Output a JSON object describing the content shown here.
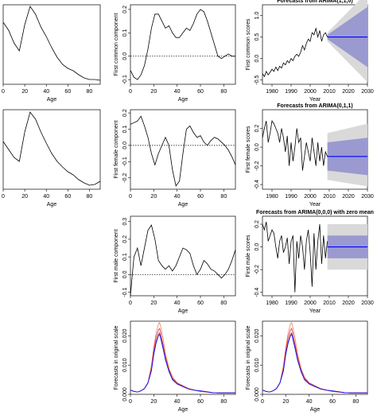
{
  "figure": {
    "background": "#ffffff",
    "colors": {
      "curve": "#000000",
      "fan_outer": "#d9d9d9",
      "fan_inner": "#9a9ad0",
      "forecast_line": "#0000ff",
      "zero_line": "#000000",
      "orig_series_1": "#f08060",
      "orig_series_2": "#e03020",
      "orig_series_3": "#7030a0",
      "orig_series_4": "#1010ff"
    }
  },
  "chart_data": [
    {
      "id": "p11",
      "type": "line",
      "title": "",
      "xlabel": "Age",
      "ylabel": "",
      "xlim": [
        0,
        90
      ],
      "xticks": [
        "0",
        "20",
        "40",
        "60",
        "80"
      ],
      "yticks": [],
      "x": [
        0,
        5,
        10,
        15,
        20,
        25,
        30,
        35,
        40,
        45,
        50,
        55,
        60,
        65,
        70,
        75,
        80,
        85,
        90
      ],
      "values": [
        0.78,
        0.68,
        0.52,
        0.42,
        0.75,
        0.98,
        0.88,
        0.72,
        0.6,
        0.46,
        0.34,
        0.25,
        0.2,
        0.17,
        0.12,
        0.08,
        0.06,
        0.06,
        0.05
      ],
      "ylim": [
        0,
        1
      ]
    },
    {
      "id": "p12",
      "type": "line",
      "title": "",
      "xlabel": "Age",
      "ylabel": "First common component",
      "xlim": [
        0,
        90
      ],
      "xticks": [
        "0",
        "20",
        "40",
        "60",
        "80"
      ],
      "ylim": [
        -0.12,
        0.22
      ],
      "yticks": [
        "-0.1",
        "0.0",
        "0.1",
        "0.2"
      ],
      "zero_line": true,
      "x": [
        0,
        3,
        6,
        9,
        12,
        15,
        18,
        21,
        24,
        27,
        30,
        33,
        36,
        39,
        42,
        45,
        48,
        51,
        54,
        57,
        60,
        63,
        66,
        69,
        72,
        75,
        78,
        81,
        84,
        87,
        90
      ],
      "values": [
        -0.06,
        -0.09,
        -0.1,
        -0.08,
        -0.04,
        0.03,
        0.12,
        0.18,
        0.18,
        0.15,
        0.12,
        0.13,
        0.1,
        0.08,
        0.08,
        0.1,
        0.12,
        0.11,
        0.14,
        0.18,
        0.2,
        0.19,
        0.15,
        0.1,
        0.05,
        0.0,
        -0.01,
        0.0,
        0.01,
        0.0,
        0.0
      ]
    },
    {
      "id": "p13",
      "type": "line",
      "title": "Forecasts from ARIMA(1,1,0)",
      "xlabel": "Year",
      "ylabel": "First common scores",
      "xlim": [
        1975,
        2030
      ],
      "xticks": [
        "1980",
        "1990",
        "2000",
        "2010",
        "2020",
        "2030"
      ],
      "ylim": [
        -0.6,
        1.25
      ],
      "yticks": [
        "-0.5",
        "0.0",
        "0.5",
        "1.0"
      ],
      "x": [
        1975,
        1976,
        1977,
        1978,
        1979,
        1980,
        1981,
        1982,
        1983,
        1984,
        1985,
        1986,
        1987,
        1988,
        1989,
        1990,
        1991,
        1992,
        1993,
        1994,
        1995,
        1996,
        1997,
        1998,
        1999,
        2000,
        2001,
        2002,
        2003,
        2004,
        2005,
        2006,
        2007,
        2008,
        2009
      ],
      "values": [
        -0.35,
        -0.42,
        -0.3,
        -0.38,
        -0.32,
        -0.25,
        -0.3,
        -0.2,
        -0.28,
        -0.18,
        -0.22,
        -0.1,
        -0.15,
        -0.05,
        -0.1,
        0.0,
        -0.05,
        0.05,
        0.1,
        0.05,
        0.15,
        0.3,
        0.2,
        0.35,
        0.45,
        0.4,
        0.6,
        0.55,
        0.7,
        0.5,
        0.65,
        0.4,
        0.55,
        0.6,
        0.5
      ],
      "forecast": {
        "x_start": 2009,
        "x_end": 2030,
        "mean": 0.5,
        "inner": [
          [
            0.45,
            0.55
          ],
          [
            -0.2,
            1.2
          ]
        ],
        "outer": [
          [
            0.4,
            0.6
          ],
          [
            -0.55,
            1.55
          ]
        ]
      }
    },
    {
      "id": "p21",
      "type": "line",
      "title": "",
      "xlabel": "Age",
      "ylabel": "",
      "xlim": [
        0,
        90
      ],
      "xticks": [
        "0",
        "20",
        "40",
        "60",
        "80"
      ],
      "yticks": [],
      "x": [
        0,
        5,
        10,
        15,
        20,
        25,
        30,
        35,
        40,
        45,
        50,
        55,
        60,
        65,
        70,
        75,
        80,
        85,
        90
      ],
      "values": [
        0.6,
        0.5,
        0.4,
        0.35,
        0.72,
        0.97,
        0.88,
        0.72,
        0.58,
        0.45,
        0.35,
        0.28,
        0.22,
        0.18,
        0.12,
        0.08,
        0.05,
        0.06,
        0.1
      ],
      "ylim": [
        0,
        1
      ]
    },
    {
      "id": "p22",
      "type": "line",
      "title": "",
      "xlabel": "Age",
      "ylabel": "First female component",
      "xlim": [
        0,
        90
      ],
      "xticks": [
        "0",
        "20",
        "40",
        "60",
        "80"
      ],
      "ylim": [
        -0.27,
        0.22
      ],
      "yticks": [
        "-0.2",
        "-0.1",
        "0.0",
        "0.1",
        "0.2"
      ],
      "zero_line": true,
      "x": [
        0,
        3,
        6,
        9,
        12,
        15,
        18,
        21,
        24,
        27,
        30,
        33,
        36,
        39,
        42,
        45,
        48,
        51,
        54,
        57,
        60,
        63,
        66,
        69,
        72,
        75,
        78,
        81,
        84,
        87,
        90
      ],
      "values": [
        0.13,
        0.14,
        0.15,
        0.18,
        0.12,
        0.05,
        -0.05,
        -0.12,
        -0.05,
        0.0,
        0.05,
        0.0,
        -0.15,
        -0.25,
        -0.22,
        -0.05,
        0.1,
        0.12,
        0.08,
        0.05,
        0.06,
        0.02,
        0.0,
        0.03,
        0.05,
        0.04,
        0.02,
        0.0,
        -0.03,
        -0.07,
        -0.12
      ]
    },
    {
      "id": "p23",
      "type": "line",
      "title": "Forecasts from ARIMA(0,1,1)",
      "xlabel": "Year",
      "ylabel": "First female scores",
      "xlim": [
        1975,
        2030
      ],
      "xticks": [
        "1980",
        "1990",
        "2000",
        "2010",
        "2020",
        "2030"
      ],
      "ylim": [
        -0.45,
        0.4
      ],
      "yticks": [
        "-0.4",
        "-0.2",
        "0.0",
        "0.2"
      ],
      "x": [
        1975,
        1976,
        1977,
        1978,
        1979,
        1980,
        1981,
        1982,
        1983,
        1984,
        1985,
        1986,
        1987,
        1988,
        1989,
        1990,
        1991,
        1992,
        1993,
        1994,
        1995,
        1996,
        1997,
        1998,
        1999,
        2000,
        2001,
        2002,
        2003,
        2004,
        2005,
        2006,
        2007,
        2008,
        2009
      ],
      "values": [
        0.1,
        0.2,
        0.28,
        0.05,
        0.15,
        0.28,
        0.25,
        0.2,
        0.15,
        0.05,
        0.2,
        0.1,
        -0.05,
        0.12,
        -0.2,
        0.05,
        -0.15,
        0.0,
        0.2,
        0.05,
        0.1,
        -0.25,
        -0.1,
        0.05,
        -0.05,
        -0.15,
        0.1,
        -0.05,
        -0.2,
        0.05,
        -0.15,
        0.0,
        -0.2,
        -0.05,
        -0.1
      ],
      "forecast": {
        "x_start": 2009,
        "x_end": 2030,
        "mean": -0.1,
        "inner": [
          [
            -0.25,
            0.05
          ],
          [
            -0.3,
            0.1
          ]
        ],
        "outer": [
          [
            -0.35,
            0.15
          ],
          [
            -0.42,
            0.25
          ]
        ]
      }
    },
    {
      "id": "p32",
      "type": "line",
      "title": "",
      "xlabel": "Age",
      "ylabel": "First male component",
      "xlim": [
        0,
        90
      ],
      "xticks": [
        "0",
        "20",
        "40",
        "60",
        "80"
      ],
      "ylim": [
        -0.12,
        0.33
      ],
      "yticks": [
        "-0.1",
        "0.0",
        "0.1",
        "0.2",
        "0.3"
      ],
      "zero_line": true,
      "x": [
        0,
        3,
        6,
        9,
        12,
        15,
        18,
        21,
        24,
        27,
        30,
        33,
        36,
        39,
        42,
        45,
        48,
        51,
        54,
        57,
        60,
        63,
        66,
        69,
        72,
        75,
        78,
        81,
        84,
        87,
        90
      ],
      "values": [
        -0.12,
        0.1,
        0.15,
        0.05,
        0.15,
        0.25,
        0.28,
        0.2,
        0.08,
        0.05,
        0.03,
        0.05,
        0.02,
        0.05,
        0.1,
        0.15,
        0.14,
        0.12,
        0.05,
        0.0,
        0.03,
        0.08,
        0.06,
        0.03,
        0.02,
        0.0,
        -0.02,
        0.0,
        0.03,
        0.08,
        0.14
      ]
    },
    {
      "id": "p33",
      "type": "line",
      "title": "Forecasts from ARIMA(0,0,0) with zero mean",
      "xlabel": "Year",
      "ylabel": "First male scores",
      "xlim": [
        1975,
        2030
      ],
      "xticks": [
        "1980",
        "1990",
        "2000",
        "2010",
        "2020",
        "2030"
      ],
      "ylim": [
        -0.43,
        0.27
      ],
      "yticks": [
        "-0.4",
        "-0.2",
        "0.0",
        "0.2"
      ],
      "x": [
        1975,
        1976,
        1977,
        1978,
        1979,
        1980,
        1981,
        1982,
        1983,
        1984,
        1985,
        1986,
        1987,
        1988,
        1989,
        1990,
        1991,
        1992,
        1993,
        1994,
        1995,
        1996,
        1997,
        1998,
        1999,
        2000,
        2001,
        2002,
        2003,
        2004,
        2005,
        2006,
        2007,
        2008,
        2009
      ],
      "values": [
        0.2,
        0.15,
        0.22,
        0.05,
        0.1,
        0.15,
        0.12,
        0.0,
        -0.1,
        0.05,
        0.1,
        -0.05,
        0.0,
        0.08,
        -0.15,
        0.05,
        0.1,
        -0.4,
        0.05,
        -0.1,
        0.1,
        0.0,
        -0.2,
        0.05,
        0.15,
        -0.05,
        -0.35,
        0.12,
        -0.2,
        0.05,
        0.2,
        -0.15,
        0.1,
        -0.1,
        0.05
      ],
      "forecast": {
        "x_start": 2009,
        "x_end": 2030,
        "mean": 0.0,
        "inner": [
          [
            -0.1,
            0.1
          ],
          [
            -0.1,
            0.1
          ]
        ],
        "outer": [
          [
            -0.2,
            0.2
          ],
          [
            -0.2,
            0.2
          ]
        ]
      }
    },
    {
      "id": "p42",
      "type": "line",
      "title": "",
      "xlabel": "Age",
      "ylabel": "Forecasts in original scale",
      "xlim": [
        0,
        90
      ],
      "xticks": [
        "0",
        "20",
        "40",
        "60",
        "80"
      ],
      "ylim": [
        0,
        0.025
      ],
      "yticks": [
        "0.000",
        "0.010",
        "0.020"
      ],
      "x": [
        0,
        3,
        6,
        9,
        12,
        15,
        18,
        20,
        22,
        24,
        25,
        26,
        28,
        30,
        33,
        36,
        40,
        45,
        50,
        55,
        60,
        65,
        70,
        75,
        80,
        85,
        90
      ],
      "series": [
        {
          "color": "#f08060",
          "values": [
            0.0015,
            0.001,
            0.0008,
            0.0012,
            0.002,
            0.004,
            0.01,
            0.016,
            0.021,
            0.024,
            0.0245,
            0.023,
            0.019,
            0.014,
            0.009,
            0.006,
            0.004,
            0.003,
            0.002,
            0.0015,
            0.001,
            0.0008,
            0.0006,
            0.0005,
            0.0005,
            0.0005,
            0.0005
          ]
        },
        {
          "color": "#e03020",
          "values": [
            0.0015,
            0.001,
            0.0008,
            0.0012,
            0.002,
            0.004,
            0.009,
            0.015,
            0.0195,
            0.022,
            0.0225,
            0.021,
            0.017,
            0.013,
            0.0085,
            0.0055,
            0.0038,
            0.0028,
            0.0019,
            0.0014,
            0.001,
            0.0008,
            0.0006,
            0.0005,
            0.0005,
            0.0005,
            0.0005
          ]
        },
        {
          "color": "#7030a0",
          "values": [
            0.0014,
            0.001,
            0.0008,
            0.0012,
            0.002,
            0.004,
            0.0085,
            0.014,
            0.018,
            0.0205,
            0.021,
            0.0195,
            0.016,
            0.012,
            0.008,
            0.0052,
            0.0036,
            0.0027,
            0.0018,
            0.0014,
            0.0012,
            0.0009,
            0.0006,
            0.0005,
            0.0005,
            0.0005,
            0.0005
          ]
        },
        {
          "color": "#1010ff",
          "values": [
            0.0014,
            0.001,
            0.0008,
            0.0012,
            0.0019,
            0.0038,
            0.008,
            0.0135,
            0.0175,
            0.02,
            0.0205,
            0.019,
            0.0155,
            0.0118,
            0.0078,
            0.005,
            0.0035,
            0.0026,
            0.0018,
            0.0014,
            0.0012,
            0.0009,
            0.0006,
            0.0005,
            0.0005,
            0.0005,
            0.0005
          ]
        }
      ]
    },
    {
      "id": "p43",
      "type": "line",
      "title": "",
      "xlabel": "Age",
      "ylabel": "Forecasts in original scale",
      "xlim": [
        0,
        90
      ],
      "xticks": [
        "0",
        "20",
        "40",
        "60",
        "80"
      ],
      "ylim": [
        0,
        0.025
      ],
      "yticks": [
        "0.000",
        "0.010",
        "0.020"
      ],
      "x": [
        0,
        3,
        6,
        9,
        12,
        15,
        18,
        20,
        22,
        24,
        25,
        26,
        28,
        30,
        33,
        36,
        40,
        45,
        50,
        55,
        60,
        65,
        70,
        75,
        80,
        85,
        90
      ],
      "series": [
        {
          "color": "#f08060",
          "values": [
            0.0015,
            0.001,
            0.0008,
            0.0012,
            0.002,
            0.004,
            0.01,
            0.016,
            0.021,
            0.024,
            0.0245,
            0.023,
            0.019,
            0.014,
            0.009,
            0.006,
            0.004,
            0.003,
            0.002,
            0.0015,
            0.001,
            0.0008,
            0.0006,
            0.0005,
            0.0005,
            0.0005,
            0.0005
          ]
        },
        {
          "color": "#e03020",
          "values": [
            0.0015,
            0.001,
            0.0008,
            0.0012,
            0.002,
            0.004,
            0.009,
            0.015,
            0.0195,
            0.022,
            0.0225,
            0.021,
            0.017,
            0.013,
            0.0085,
            0.0055,
            0.0038,
            0.0028,
            0.0019,
            0.0014,
            0.001,
            0.0008,
            0.0006,
            0.0005,
            0.0005,
            0.0005,
            0.0005
          ]
        },
        {
          "color": "#7030a0",
          "values": [
            0.0014,
            0.001,
            0.0008,
            0.0012,
            0.002,
            0.004,
            0.0085,
            0.014,
            0.018,
            0.0205,
            0.021,
            0.0195,
            0.016,
            0.012,
            0.008,
            0.0052,
            0.0036,
            0.0027,
            0.0018,
            0.0014,
            0.0012,
            0.0009,
            0.0006,
            0.0005,
            0.0005,
            0.0005,
            0.0005
          ]
        },
        {
          "color": "#1010ff",
          "values": [
            0.0014,
            0.001,
            0.0008,
            0.0012,
            0.0019,
            0.0038,
            0.008,
            0.0135,
            0.0175,
            0.02,
            0.0205,
            0.019,
            0.0155,
            0.0118,
            0.0078,
            0.005,
            0.0035,
            0.0026,
            0.0018,
            0.0014,
            0.0012,
            0.0009,
            0.0006,
            0.0005,
            0.0005,
            0.0005,
            0.0005
          ]
        }
      ]
    }
  ]
}
